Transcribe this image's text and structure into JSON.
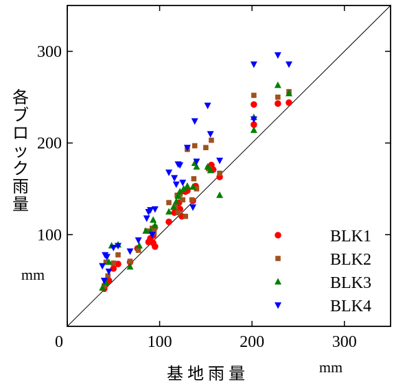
{
  "chart_data": {
    "type": "scatter",
    "xlabel": "基 地 雨 量",
    "xunit": "mm",
    "ylabel": "各ブロック雨量",
    "yunit": "mm",
    "xlim": [
      0,
      350
    ],
    "ylim": [
      0,
      350
    ],
    "x_ticks": [
      0,
      100,
      200,
      300
    ],
    "y_ticks": [
      100,
      200,
      300
    ],
    "x_tick_labels": [
      "0",
      "100",
      "200",
      "300"
    ],
    "y_tick_labels": [
      "100",
      "200",
      "300"
    ],
    "reference_line": "y = x",
    "grid": false,
    "legend_position": "bottom-right",
    "series": [
      {
        "name": "BLK1",
        "marker": "circle",
        "color": "#ff0000",
        "points": [
          [
            40,
            41
          ],
          [
            41,
            45
          ],
          [
            42,
            46
          ],
          [
            45,
            50
          ],
          [
            50,
            63
          ],
          [
            55,
            68
          ],
          [
            68,
            70
          ],
          [
            76,
            85
          ],
          [
            88,
            92
          ],
          [
            90,
            96
          ],
          [
            93,
            99
          ],
          [
            93,
            91
          ],
          [
            95,
            87
          ],
          [
            94,
            107
          ],
          [
            110,
            114
          ],
          [
            116,
            124
          ],
          [
            118,
            130
          ],
          [
            121,
            135
          ],
          [
            122,
            128
          ],
          [
            124,
            120
          ],
          [
            128,
            147
          ],
          [
            130,
            148
          ],
          [
            136,
            137
          ],
          [
            139,
            153
          ],
          [
            153,
            173
          ],
          [
            156,
            176
          ],
          [
            158,
            171
          ],
          [
            165,
            163
          ],
          [
            202,
            220
          ],
          [
            202,
            242
          ],
          [
            228,
            243
          ],
          [
            240,
            244
          ]
        ]
      },
      {
        "name": "BLK2",
        "marker": "square",
        "color": "#a0521e",
        "points": [
          [
            40,
            44
          ],
          [
            42,
            70
          ],
          [
            44,
            55
          ],
          [
            50,
            69
          ],
          [
            55,
            78
          ],
          [
            68,
            71
          ],
          [
            77,
            83
          ],
          [
            86,
            104
          ],
          [
            92,
            107
          ],
          [
            94,
            102
          ],
          [
            95,
            108
          ],
          [
            110,
            135
          ],
          [
            117,
            130
          ],
          [
            119,
            143
          ],
          [
            120,
            124
          ],
          [
            122,
            144
          ],
          [
            125,
            138
          ],
          [
            128,
            120
          ],
          [
            130,
            193
          ],
          [
            135,
            138
          ],
          [
            137,
            161
          ],
          [
            138,
            197
          ],
          [
            140,
            150
          ],
          [
            150,
            195
          ],
          [
            153,
            172
          ],
          [
            156,
            203
          ],
          [
            165,
            167
          ],
          [
            202,
            252
          ],
          [
            228,
            250
          ],
          [
            240,
            256
          ]
        ]
      },
      {
        "name": "BLK3",
        "marker": "triangle-up",
        "color": "#008000",
        "points": [
          [
            38,
            42
          ],
          [
            42,
            48
          ],
          [
            45,
            70
          ],
          [
            48,
            88
          ],
          [
            55,
            89
          ],
          [
            68,
            65
          ],
          [
            78,
            88
          ],
          [
            85,
            104
          ],
          [
            90,
            104
          ],
          [
            93,
            116
          ],
          [
            95,
            110
          ],
          [
            110,
            125
          ],
          [
            115,
            130
          ],
          [
            118,
            136
          ],
          [
            120,
            142
          ],
          [
            122,
            147
          ],
          [
            126,
            150
          ],
          [
            130,
            153
          ],
          [
            136,
            152
          ],
          [
            138,
            178
          ],
          [
            140,
            174
          ],
          [
            152,
            174
          ],
          [
            155,
            170
          ],
          [
            165,
            143
          ],
          [
            202,
            214
          ],
          [
            202,
            228
          ],
          [
            228,
            263
          ],
          [
            240,
            254
          ]
        ]
      },
      {
        "name": "BLK4",
        "marker": "triangle-down",
        "color": "#0000ff",
        "points": [
          [
            38,
            66
          ],
          [
            40,
            50
          ],
          [
            41,
            78
          ],
          [
            43,
            76
          ],
          [
            45,
            60
          ],
          [
            50,
            86
          ],
          [
            55,
            88
          ],
          [
            68,
            82
          ],
          [
            77,
            94
          ],
          [
            86,
            118
          ],
          [
            88,
            125
          ],
          [
            90,
            127
          ],
          [
            92,
            100
          ],
          [
            95,
            128
          ],
          [
            110,
            168
          ],
          [
            116,
            162
          ],
          [
            118,
            155
          ],
          [
            120,
            177
          ],
          [
            122,
            176
          ],
          [
            125,
            157
          ],
          [
            130,
            195
          ],
          [
            136,
            130
          ],
          [
            138,
            224
          ],
          [
            140,
            180
          ],
          [
            152,
            241
          ],
          [
            155,
            210
          ],
          [
            165,
            181
          ],
          [
            202,
            226
          ],
          [
            202,
            286
          ],
          [
            228,
            296
          ],
          [
            240,
            286
          ]
        ]
      }
    ]
  }
}
